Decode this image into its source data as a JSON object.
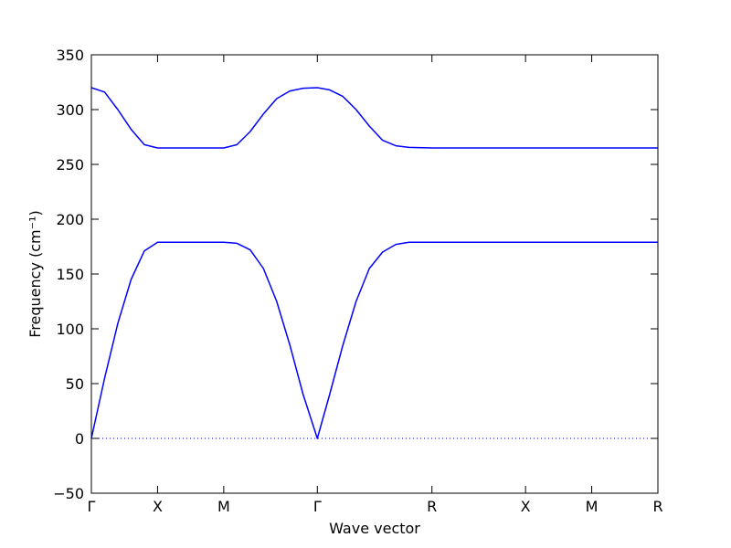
{
  "chart_data": {
    "type": "line",
    "xlabel": "Wave vector",
    "ylabel": "Frequency (cm⁻¹)",
    "x": [
      0,
      0.1,
      0.2,
      0.3,
      0.4,
      0.5,
      0.75,
      1.0,
      1.1,
      1.2,
      1.3,
      1.4,
      1.5,
      1.6,
      1.7071,
      1.8,
      1.9,
      2.0,
      2.1,
      2.2,
      2.3,
      2.4,
      2.5731,
      3.2802,
      3.7802,
      4.2802
    ],
    "series": [
      {
        "color": "#0000ff",
        "values": [
          0,
          55,
          105,
          145,
          171,
          179,
          179,
          179,
          178,
          172,
          155,
          125,
          85,
          40,
          0,
          40,
          85,
          125,
          155,
          170,
          177,
          179,
          179,
          179,
          179,
          179
        ]
      },
      {
        "color": "#0000ff",
        "values": [
          320,
          316,
          300,
          282,
          268,
          265,
          265,
          265,
          268,
          280,
          296,
          310,
          317,
          319.5,
          320,
          318,
          312,
          300,
          285,
          272,
          267,
          265.5,
          265,
          265,
          265,
          265
        ]
      }
    ],
    "xlim": [
      0,
      4.2802
    ],
    "xticks": [
      {
        "value": 0,
        "label": "Γ"
      },
      {
        "value": 0.5,
        "label": "X"
      },
      {
        "value": 1.0,
        "label": "M"
      },
      {
        "value": 1.7071,
        "label": "Γ"
      },
      {
        "value": 2.5731,
        "label": "R"
      },
      {
        "value": 3.2802,
        "label": "X"
      },
      {
        "value": 3.7802,
        "label": "M"
      },
      {
        "value": 4.2802,
        "label": "R"
      }
    ],
    "ylim": [
      -50,
      350
    ],
    "yticks": [
      {
        "value": -50,
        "label": "−50"
      },
      0,
      50,
      100,
      150,
      200,
      250,
      300,
      350
    ],
    "hline": 0,
    "grid": false
  }
}
